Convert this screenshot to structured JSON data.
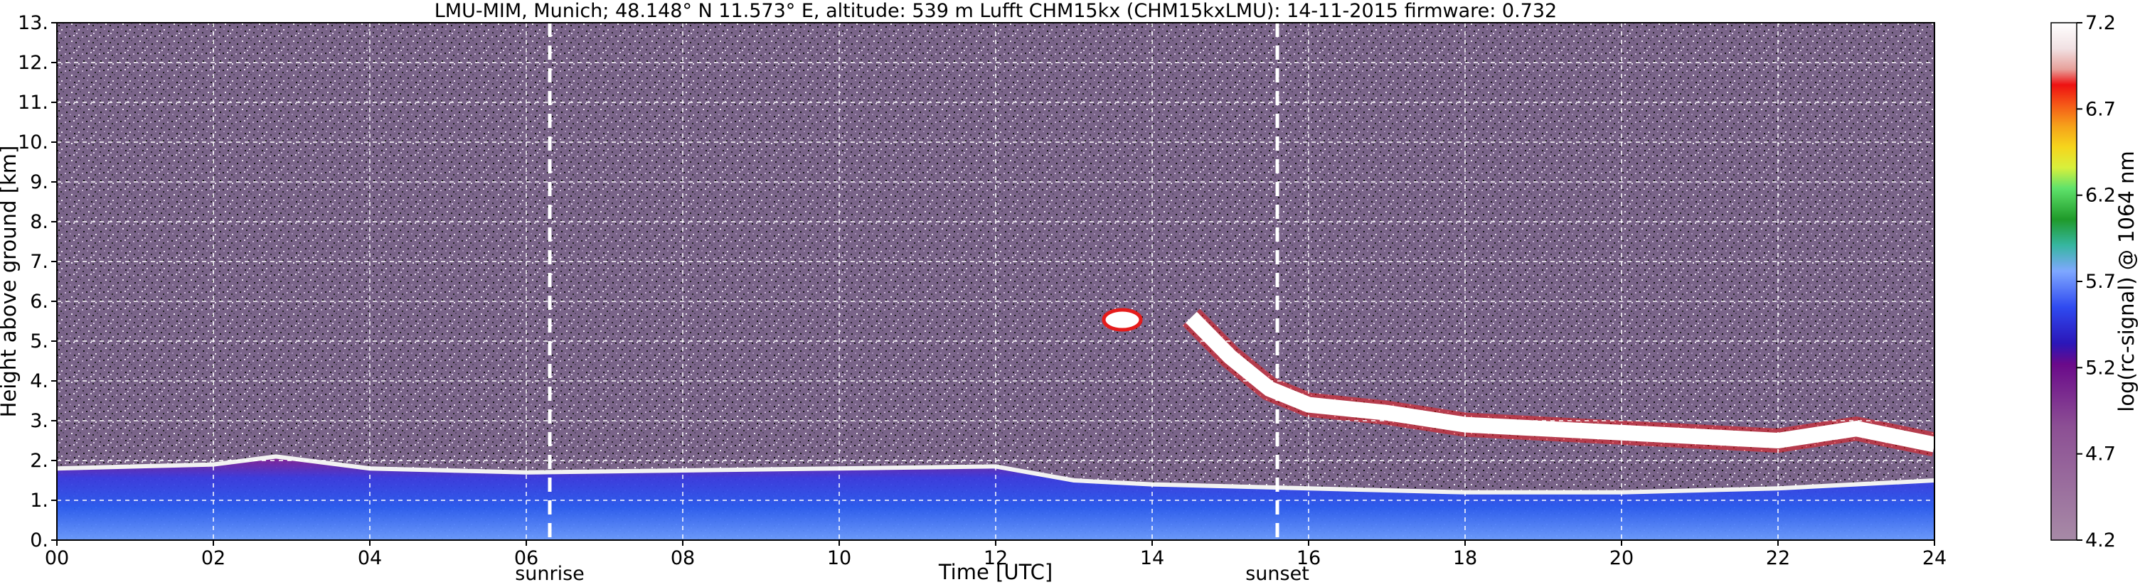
{
  "chart_data": {
    "type": "heatmap",
    "title": "LMU-MIM, Munich; 48.148° N 11.573° E, altitude: 539 m    Lufft CHM15kx (CHM15kxLMU): 14-11-2015    firmware: 0.732",
    "xlabel": "Time [UTC]",
    "ylabel": "Height above ground [km]",
    "xlim": [
      0,
      24
    ],
    "ylim": [
      0,
      13
    ],
    "x_ticks": [
      "00",
      "02",
      "04",
      "06",
      "08",
      "10",
      "12",
      "14",
      "16",
      "18",
      "20",
      "22",
      "24"
    ],
    "y_ticks": [
      "0.",
      "1.",
      "2.",
      "3.",
      "4.",
      "5.",
      "6.",
      "7.",
      "8.",
      "9.",
      "10.",
      "11.",
      "12.",
      "13."
    ],
    "grid": true,
    "markers": [
      {
        "label": "sunrise",
        "x": 6.3
      },
      {
        "label": "sunset",
        "x": 15.6
      }
    ],
    "colorbar": {
      "label": "log(rc-signal) @ 1064 nm",
      "range": [
        4.2,
        7.2
      ],
      "ticks": [
        "4.2",
        "4.7",
        "5.2",
        "5.7",
        "6.2",
        "6.7",
        "7.2"
      ]
    },
    "layers": {
      "boundary_layer_top_km": [
        [
          0,
          1.8
        ],
        [
          1,
          1.85
        ],
        [
          2,
          1.9
        ],
        [
          2.8,
          2.1
        ],
        [
          4,
          1.8
        ],
        [
          6,
          1.7
        ],
        [
          8,
          1.75
        ],
        [
          10,
          1.8
        ],
        [
          12,
          1.85
        ],
        [
          13,
          1.5
        ],
        [
          14,
          1.4
        ],
        [
          16,
          1.3
        ],
        [
          18,
          1.2
        ],
        [
          20,
          1.2
        ],
        [
          22,
          1.3
        ],
        [
          24,
          1.5
        ]
      ],
      "cloud_layer_km": [
        [
          14.5,
          5.6
        ],
        [
          15,
          4.6
        ],
        [
          15.5,
          3.8
        ],
        [
          16,
          3.4
        ],
        [
          17,
          3.2
        ],
        [
          18,
          2.9
        ],
        [
          19,
          2.8
        ],
        [
          20,
          2.7
        ],
        [
          21,
          2.6
        ],
        [
          22,
          2.5
        ],
        [
          23,
          2.8
        ],
        [
          24,
          2.4
        ]
      ]
    }
  }
}
